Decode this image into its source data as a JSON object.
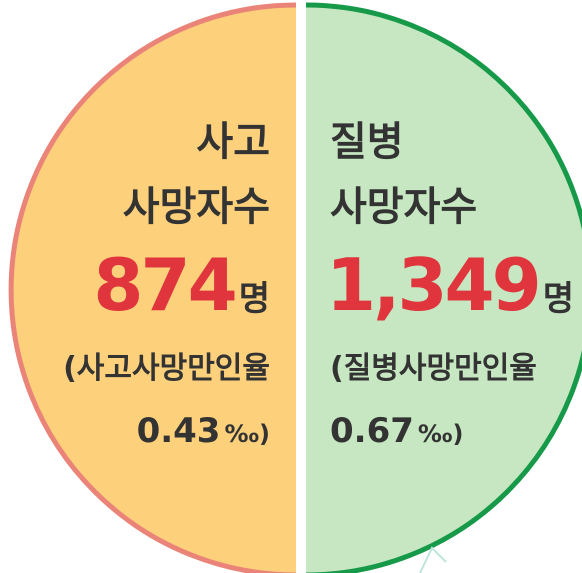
{
  "left": {
    "title_lines": [
      "사고",
      "사망자수"
    ],
    "count": "874",
    "unit": "명",
    "rate_label": "(사고사망만인율",
    "rate": "0.43",
    "rate_unit": "‰)"
  },
  "right": {
    "title_lines": [
      "질병",
      "사망자수"
    ],
    "count": "1,349",
    "unit": "명",
    "rate_label": "(질병사망만인율",
    "rate": "0.67",
    "rate_unit": "‰)"
  }
}
